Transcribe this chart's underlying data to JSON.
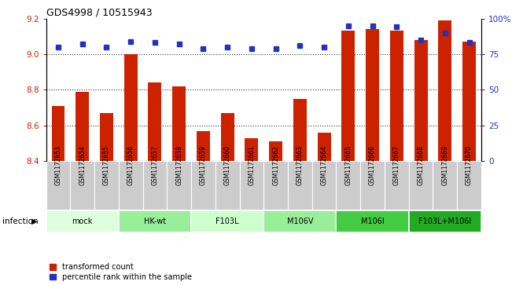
{
  "title": "GDS4998 / 10515943",
  "samples": [
    "GSM1172653",
    "GSM1172654",
    "GSM1172655",
    "GSM1172656",
    "GSM1172657",
    "GSM1172658",
    "GSM1172659",
    "GSM1172660",
    "GSM1172661",
    "GSM1172662",
    "GSM1172663",
    "GSM1172664",
    "GSM1172665",
    "GSM1172666",
    "GSM1172667",
    "GSM1172668",
    "GSM1172669",
    "GSM1172670"
  ],
  "bar_values": [
    8.71,
    8.79,
    8.67,
    9.0,
    8.84,
    8.82,
    8.57,
    8.67,
    8.53,
    8.51,
    8.75,
    8.56,
    9.13,
    9.14,
    9.13,
    9.08,
    9.19,
    9.07
  ],
  "dot_values": [
    80,
    82,
    80,
    84,
    83,
    82,
    79,
    80,
    79,
    79,
    81,
    80,
    95,
    95,
    94,
    85,
    90,
    83
  ],
  "ylim_left": [
    8.4,
    9.2
  ],
  "ylim_right": [
    0,
    100
  ],
  "yticks_left": [
    8.4,
    8.6,
    8.8,
    9.0,
    9.2
  ],
  "yticks_right": [
    0,
    25,
    50,
    75,
    100
  ],
  "bar_color": "#cc2200",
  "dot_color": "#2233bb",
  "groups": [
    {
      "label": "mock",
      "start": 0,
      "end": 3,
      "color": "#ddffdd"
    },
    {
      "label": "HK-wt",
      "start": 3,
      "end": 6,
      "color": "#99ee99"
    },
    {
      "label": "F103L",
      "start": 6,
      "end": 9,
      "color": "#ccffcc"
    },
    {
      "label": "M106V",
      "start": 9,
      "end": 12,
      "color": "#99ee99"
    },
    {
      "label": "M106I",
      "start": 12,
      "end": 15,
      "color": "#44cc44"
    },
    {
      "label": "F103L+M106I",
      "start": 15,
      "end": 18,
      "color": "#22aa22"
    }
  ],
  "legend_label_bar": "transformed count",
  "legend_label_dot": "percentile rank within the sample",
  "infection_label": "infection"
}
